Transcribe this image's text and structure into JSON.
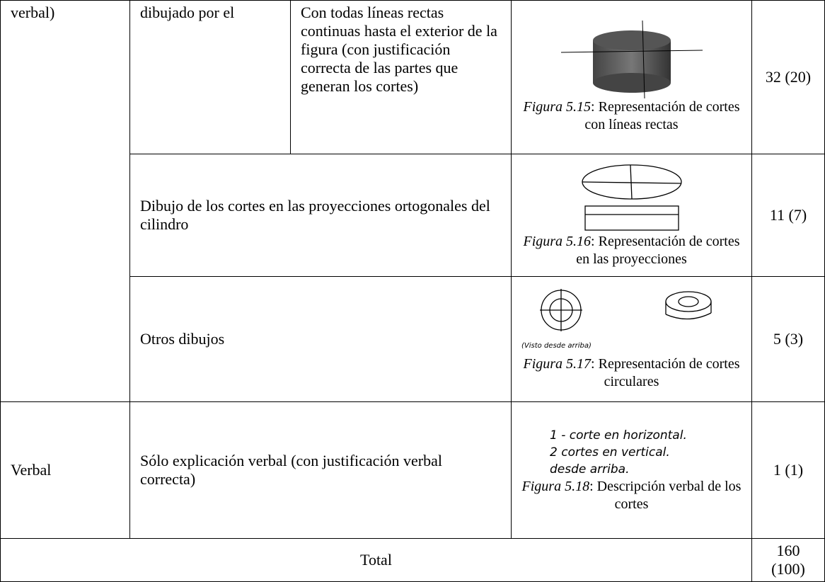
{
  "table": {
    "rows": [
      {
        "group": "verbal)",
        "category": "dibujado por el",
        "description": "Con todas líneas rectas continuas hasta el exterior de la figura (con justificación correcta de las partes que generan los cortes)",
        "figure": {
          "label": "Figura 5.15",
          "caption": ": Representación de cortes con líneas rectas"
        },
        "count": "32 (20)"
      },
      {
        "description": "Dibujo de los cortes en las proyecciones ortogonales del cilindro",
        "figure": {
          "label": "Figura 5.16",
          "caption": ": Representación de cortes en las proyecciones"
        },
        "count": "11 (7)"
      },
      {
        "description": "Otros dibujos",
        "figure": {
          "label": "Figura 5.17",
          "caption": ": Representación de cortes circulares",
          "note": "(Visto desde arriba)"
        },
        "count": "5 (3)"
      },
      {
        "group": "Verbal",
        "description": "Sólo explicación verbal (con justificación verbal correcta)",
        "figure": {
          "label": "Figura 5.18",
          "caption": ": Descripción verbal de los cortes",
          "handwriting": [
            "1 - corte en horizontal.",
            "2 cortes en vertical.",
            "desde arriba."
          ]
        },
        "count": "1 (1)"
      }
    ],
    "total": {
      "label": "Total",
      "count": "160 (100)"
    }
  }
}
